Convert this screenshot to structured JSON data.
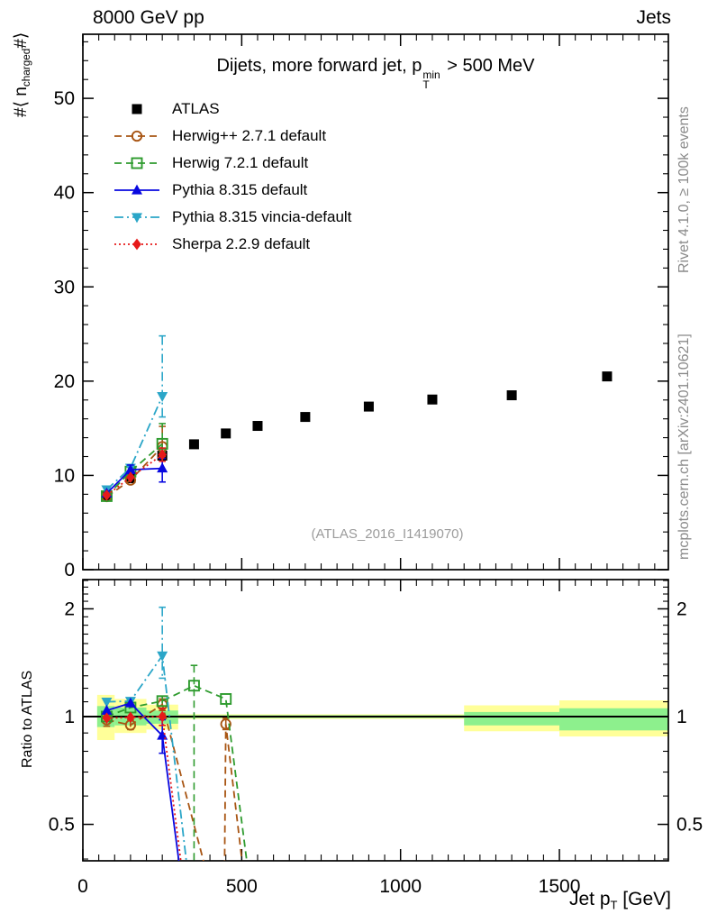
{
  "header": {
    "left": "8000 GeV pp",
    "right": "Jets"
  },
  "title": {
    "pre": "Dijets, more forward jet, p",
    "sup": "min",
    "sub": "T",
    "post": " > 500 MeV"
  },
  "labels": {
    "ylabel_main_pre": "#⟨ n",
    "ylabel_main_sub": "charged",
    "ylabel_main_post": "#⟩",
    "ylabel_ratio": "Ratio to ATLAS",
    "xlabel_pre": "Jet p",
    "xlabel_sub": "T",
    "xlabel_post": " [GeV]"
  },
  "watermark": "(ATLAS_2016_I1419070)",
  "side_notes": {
    "top": "Rivet 4.1.0, ≥ 100k events",
    "bottom": "mcplots.cern.ch [arXiv:2401.10621]"
  },
  "chart_data": {
    "type": "line",
    "description": "Mean charged multiplicity vs jet pT (main panel) with MC/data ratio panel",
    "xlabel": "Jet pT [GeV]",
    "xlim": [
      0,
      1843
    ],
    "main_ylim": [
      0,
      56.8
    ],
    "ratio_ylim": [
      0.3955,
      2.414
    ],
    "ratio_yscale": "log",
    "axes": {
      "x_majors": [
        0,
        500,
        1000,
        1500
      ],
      "x_minor_step": 50,
      "x_minor_max": 1800,
      "y_main_majors": [
        0,
        10,
        20,
        30,
        40,
        50
      ],
      "y_main_minor_step": 2,
      "y_main_minor_max": 56,
      "y_ratio_majors": [
        0.5,
        1,
        2
      ],
      "y_ratio_major_labels": [
        "0.5",
        "1",
        "2"
      ],
      "y_ratio_minors_from": 0.4,
      "y_ratio_minors_to": 2.4,
      "y_ratio_minors_step": 0.1
    },
    "band_colors": {
      "outer": "#ffff99",
      "inner": "#8df08d"
    },
    "reference_line": {
      "y": 1,
      "color": "#000000"
    },
    "bands": [
      {
        "x1": 45,
        "x2": 100,
        "outer": [
          0.86,
          1.15
        ],
        "inner": [
          0.935,
          1.07
        ]
      },
      {
        "x1": 100,
        "x2": 200,
        "outer": [
          0.9,
          1.12
        ],
        "inner": [
          0.945,
          1.06
        ]
      },
      {
        "x1": 200,
        "x2": 300,
        "outer": [
          0.92,
          1.08
        ],
        "inner": [
          0.955,
          1.04
        ]
      },
      {
        "x1": 300,
        "x2": 1200,
        "outer": [
          0.985,
          1.015
        ],
        "inner": [
          0.991,
          1.009
        ]
      },
      {
        "x1": 1200,
        "x2": 1500,
        "outer": [
          0.91,
          1.075
        ],
        "inner": [
          0.945,
          1.03
        ]
      },
      {
        "x1": 1500,
        "x2": 1843,
        "outer": [
          0.88,
          1.11
        ],
        "inner": [
          0.915,
          1.055
        ]
      }
    ],
    "draw_order": [
      "atlas",
      "herwigpp",
      "herwig7",
      "vincia",
      "pythia",
      "sherpa"
    ],
    "series": [
      {
        "id": "atlas",
        "label": "ATLAS",
        "color": "#000000",
        "marker": "square-filled",
        "line": "none",
        "main": {
          "points": [
            [
              75,
              7.85
            ],
            [
              150,
              9.7
            ],
            [
              250,
              12.1
            ],
            [
              350,
              13.3
            ],
            [
              450,
              14.45
            ],
            [
              550,
              15.25
            ],
            [
              700,
              16.2
            ],
            [
              900,
              17.3
            ],
            [
              1100,
              18.05
            ],
            [
              1350,
              18.5
            ],
            [
              1650,
              20.5
            ]
          ],
          "errors": []
        },
        "ratio": {
          "reference": true,
          "line": [],
          "markers": [],
          "errors": []
        }
      },
      {
        "id": "herwigpp",
        "label": "Herwig++ 2.7.1 default",
        "color": "#a85513",
        "marker": "circle-open",
        "line": "dash",
        "main": {
          "points": [
            [
              75,
              7.75
            ],
            [
              150,
              9.5
            ],
            [
              250,
              13.05
            ]
          ],
          "errors": [
            [
              250,
              12.0,
              15.2
            ]
          ]
        },
        "ratio": {
          "line": [
            [
              75,
              0.98
            ],
            [
              150,
              0.947
            ],
            [
              250,
              1.08
            ],
            [
              444,
              0.24
            ],
            [
              450,
              0.953
            ],
            [
              530,
              0.24
            ]
          ],
          "markers": [
            [
              75,
              0.98
            ],
            [
              150,
              0.947
            ],
            [
              250,
              1.08
            ],
            [
              450,
              0.953
            ]
          ],
          "errors": [
            [
              75,
              0.94,
              1.01
            ],
            [
              150,
              0.92,
              0.98
            ],
            [
              250,
              1.04,
              1.12
            ],
            [
              450,
              0.92,
              0.99
            ]
          ]
        }
      },
      {
        "id": "herwig7",
        "label": "Herwig 7.2.1 default",
        "color": "#2e9b2e",
        "marker": "square-open",
        "line": "dash",
        "main": {
          "points": [
            [
              75,
              7.8
            ],
            [
              150,
              10.4
            ],
            [
              250,
              13.35
            ]
          ],
          "errors": [
            [
              250,
              12.5,
              15.5
            ]
          ]
        },
        "ratio": {
          "line": [
            [
              75,
              1.0
            ],
            [
              150,
              1.06
            ],
            [
              250,
              1.105
            ],
            [
              350,
              1.22
            ],
            [
              450,
              1.12
            ],
            [
              545,
              0.25
            ]
          ],
          "markers": [
            [
              75,
              1.0
            ],
            [
              150,
              1.06
            ],
            [
              250,
              1.105
            ],
            [
              350,
              1.22
            ],
            [
              450,
              1.12
            ]
          ],
          "errors": [
            [
              250,
              1.07,
              1.14
            ],
            [
              350,
              0.22,
              1.39
            ]
          ]
        }
      },
      {
        "id": "pythia",
        "label": "Pythia 8.315 default",
        "color": "#0808e0",
        "marker": "triangle-up",
        "line": "solid",
        "main": {
          "points": [
            [
              75,
              8.1
            ],
            [
              150,
              10.6
            ],
            [
              250,
              10.75
            ]
          ],
          "errors": [
            [
              150,
              10.2,
              11.1
            ],
            [
              250,
              9.3,
              11.8
            ]
          ]
        },
        "ratio": {
          "line": [
            [
              75,
              1.04
            ],
            [
              150,
              1.09
            ],
            [
              250,
              0.885
            ],
            [
              340,
              0.22
            ]
          ],
          "markers": [
            [
              75,
              1.04
            ],
            [
              150,
              1.09
            ],
            [
              250,
              0.885
            ]
          ],
          "errors": [
            [
              250,
              0.79,
              0.98
            ]
          ]
        }
      },
      {
        "id": "vincia",
        "label": "Pythia 8.315 vincia-default",
        "color": "#2ba6c8",
        "marker": "triangle-down",
        "line": "dashdot",
        "main": {
          "points": [
            [
              75,
              8.5
            ],
            [
              150,
              10.8
            ],
            [
              250,
              18.4
            ]
          ],
          "errors": [
            [
              250,
              16.2,
              24.8
            ]
          ]
        },
        "ratio": {
          "line": [
            [
              75,
              1.1
            ],
            [
              150,
              1.105
            ],
            [
              250,
              1.48
            ],
            [
              352,
              0.25
            ]
          ],
          "markers": [
            [
              75,
              1.1
            ],
            [
              150,
              1.105
            ],
            [
              250,
              1.48
            ]
          ],
          "errors": [
            [
              250,
              1.28,
              2.02
            ]
          ]
        }
      },
      {
        "id": "sherpa",
        "label": "Sherpa 2.2.9 default",
        "color": "#e61a1a",
        "marker": "diamond",
        "line": "dot",
        "main": {
          "points": [
            [
              75,
              7.9
            ],
            [
              150,
              9.8
            ],
            [
              250,
              12.2
            ]
          ],
          "errors": [
            [
              250,
              11.5,
              12.9
            ]
          ]
        },
        "ratio": {
          "line": [
            [
              75,
              0.99
            ],
            [
              150,
              0.995
            ],
            [
              250,
              1.0
            ],
            [
              345,
              0.22
            ]
          ],
          "markers": [
            [
              75,
              0.99
            ],
            [
              150,
              0.995
            ],
            [
              250,
              1.0
            ]
          ],
          "errors": [
            [
              250,
              0.945,
              1.055
            ]
          ]
        }
      }
    ]
  }
}
